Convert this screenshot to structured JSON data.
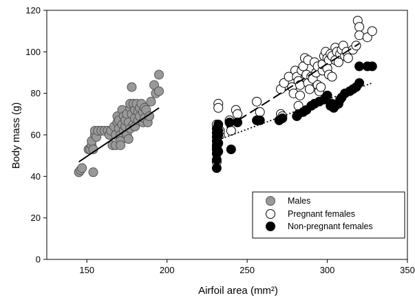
{
  "chart_data": {
    "type": "scatter",
    "title": "",
    "xlabel": "Airfoil area (mm²)",
    "ylabel": "Body mass (g)",
    "xlim": [
      125,
      350
    ],
    "ylim": [
      0,
      120
    ],
    "xticks": [
      150,
      200,
      250,
      300,
      350
    ],
    "yticks": [
      0,
      20,
      40,
      60,
      80,
      100,
      120
    ],
    "grid": false,
    "legend_position": "bottom-right",
    "series": [
      {
        "name": "Males",
        "marker": "filled-circle",
        "color": "#999999",
        "trendline": {
          "style": "solid",
          "from": [
            145,
            47
          ],
          "to": [
            195,
            73
          ]
        },
        "points": [
          [
            145,
            42
          ],
          [
            146,
            43
          ],
          [
            147,
            44
          ],
          [
            151,
            53
          ],
          [
            152,
            53
          ],
          [
            153,
            55
          ],
          [
            153,
            57
          ],
          [
            154,
            42
          ],
          [
            154,
            53
          ],
          [
            155,
            60
          ],
          [
            155,
            62
          ],
          [
            156,
            59
          ],
          [
            157,
            62
          ],
          [
            159,
            62
          ],
          [
            161,
            62
          ],
          [
            163,
            62
          ],
          [
            164,
            60
          ],
          [
            165,
            62
          ],
          [
            166,
            55
          ],
          [
            167,
            64
          ],
          [
            168,
            55
          ],
          [
            168,
            60
          ],
          [
            169,
            66
          ],
          [
            169,
            69
          ],
          [
            170,
            63
          ],
          [
            170,
            67
          ],
          [
            171,
            60
          ],
          [
            171,
            57
          ],
          [
            171,
            55
          ],
          [
            172,
            72
          ],
          [
            172,
            65
          ],
          [
            173,
            62
          ],
          [
            173,
            69
          ],
          [
            174,
            64
          ],
          [
            174,
            67
          ],
          [
            175,
            70
          ],
          [
            175,
            60
          ],
          [
            176,
            58
          ],
          [
            176,
            66
          ],
          [
            177,
            73
          ],
          [
            177,
            75
          ],
          [
            177,
            63
          ],
          [
            178,
            70
          ],
          [
            178,
            83
          ],
          [
            179,
            65
          ],
          [
            179,
            75
          ],
          [
            180,
            64
          ],
          [
            180,
            72
          ],
          [
            180,
            68
          ],
          [
            181,
            75
          ],
          [
            182,
            71
          ],
          [
            182,
            67
          ],
          [
            183,
            69
          ],
          [
            183,
            73
          ],
          [
            184,
            75
          ],
          [
            185,
            66
          ],
          [
            185,
            71
          ],
          [
            186,
            68
          ],
          [
            186,
            73
          ],
          [
            187,
            72
          ],
          [
            188,
            66
          ],
          [
            189,
            69
          ],
          [
            190,
            76
          ],
          [
            192,
            84
          ],
          [
            193,
            80
          ],
          [
            195,
            89
          ],
          [
            195,
            81
          ]
        ]
      },
      {
        "name": "Pregnant females",
        "marker": "open-circle",
        "color": "#000000",
        "trendline": {
          "style": "dashed",
          "from": [
            230,
            60
          ],
          "to": [
            320,
            104
          ]
        },
        "points": [
          [
            231,
            47
          ],
          [
            231,
            53
          ],
          [
            231,
            65
          ],
          [
            232,
            75
          ],
          [
            232,
            73
          ],
          [
            233,
            60
          ],
          [
            233,
            62
          ],
          [
            239,
            67
          ],
          [
            240,
            62
          ],
          [
            243,
            72
          ],
          [
            244,
            70
          ],
          [
            256,
            76
          ],
          [
            258,
            71
          ],
          [
            271,
            82
          ],
          [
            273,
            85
          ],
          [
            276,
            88
          ],
          [
            278,
            83
          ],
          [
            279,
            80
          ],
          [
            280,
            91
          ],
          [
            281,
            88
          ],
          [
            282,
            86
          ],
          [
            283,
            84
          ],
          [
            283,
            79
          ],
          [
            284,
            91
          ],
          [
            285,
            93
          ],
          [
            286,
            97
          ],
          [
            287,
            89
          ],
          [
            288,
            96
          ],
          [
            288,
            85
          ],
          [
            289,
            82
          ],
          [
            290,
            88
          ],
          [
            291,
            87
          ],
          [
            292,
            95
          ],
          [
            293,
            90
          ],
          [
            294,
            93
          ],
          [
            294,
            84
          ],
          [
            295,
            81
          ],
          [
            296,
            83
          ],
          [
            297,
            91
          ],
          [
            297,
            94
          ],
          [
            298,
            98
          ],
          [
            299,
            100
          ],
          [
            300,
            97
          ],
          [
            300,
            92
          ],
          [
            301,
            96
          ],
          [
            301,
            89
          ],
          [
            302,
            99
          ],
          [
            303,
            98
          ],
          [
            303,
            88
          ],
          [
            305,
            102
          ],
          [
            305,
            96
          ],
          [
            306,
            100
          ],
          [
            307,
            95
          ],
          [
            308,
            99
          ],
          [
            309,
            101
          ],
          [
            310,
            103
          ],
          [
            311,
            98
          ],
          [
            312,
            100
          ],
          [
            313,
            97
          ],
          [
            316,
            101
          ],
          [
            318,
            103
          ],
          [
            319,
            115
          ],
          [
            320,
            112
          ],
          [
            320,
            108
          ],
          [
            325,
            107
          ],
          [
            328,
            110
          ],
          [
            271,
            70
          ],
          [
            272,
            69
          ],
          [
            282,
            74
          ]
        ]
      },
      {
        "name": "Non-pregnant females",
        "marker": "filled-circle",
        "color": "#000000",
        "trendline": {
          "style": "dotted",
          "from": [
            230,
            57
          ],
          "to": [
            328,
            85
          ]
        },
        "points": [
          [
            231,
            44
          ],
          [
            231,
            48
          ],
          [
            231,
            51
          ],
          [
            231,
            53
          ],
          [
            231,
            54
          ],
          [
            231,
            55
          ],
          [
            231,
            57
          ],
          [
            231,
            59
          ],
          [
            231,
            61
          ],
          [
            231,
            63
          ],
          [
            232,
            65
          ],
          [
            232,
            52
          ],
          [
            232,
            56
          ],
          [
            232,
            60
          ],
          [
            232,
            62
          ],
          [
            239,
            66
          ],
          [
            240,
            53
          ],
          [
            244,
            66
          ],
          [
            256,
            67
          ],
          [
            258,
            67
          ],
          [
            270,
            67
          ],
          [
            272,
            68
          ],
          [
            281,
            69
          ],
          [
            282,
            70
          ],
          [
            285,
            71
          ],
          [
            287,
            72
          ],
          [
            290,
            74
          ],
          [
            292,
            75
          ],
          [
            295,
            76
          ],
          [
            298,
            77
          ],
          [
            300,
            79
          ],
          [
            302,
            74
          ],
          [
            303,
            75
          ],
          [
            304,
            73
          ],
          [
            305,
            74
          ],
          [
            307,
            75
          ],
          [
            308,
            77
          ],
          [
            309,
            78
          ],
          [
            311,
            80
          ],
          [
            314,
            81
          ],
          [
            316,
            82
          ],
          [
            318,
            83
          ],
          [
            320,
            85
          ],
          [
            320,
            93
          ],
          [
            325,
            93
          ],
          [
            328,
            93
          ]
        ]
      }
    ]
  }
}
